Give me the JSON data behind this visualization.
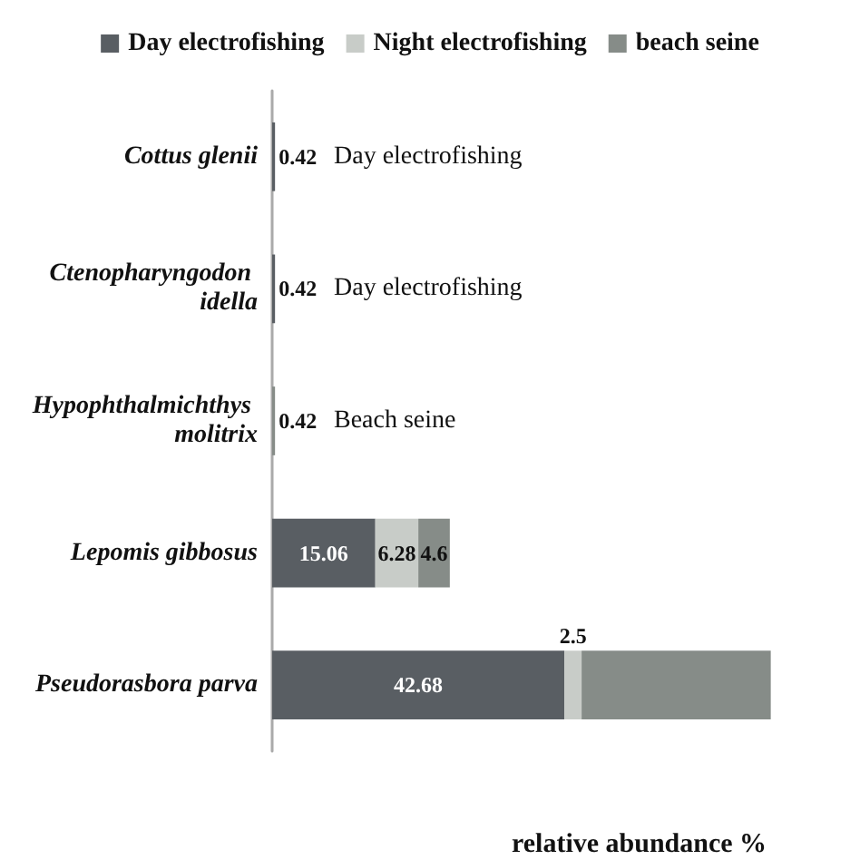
{
  "chart_data": {
    "type": "bar",
    "orientation": "horizontal",
    "stacked": true,
    "xlabel": "relative abundance %",
    "legend": "top",
    "categories": [
      "Cottus glenii",
      "Ctenopharyngodon idella",
      "Hypophthalmichthys molitrix",
      "Lepomis gibbosus",
      "Pseudorasbora parva"
    ],
    "series": [
      {
        "name": "Day electrofishing",
        "color": "#595e63",
        "values": [
          0.42,
          0.42,
          null,
          15.06,
          42.68
        ],
        "value_labels": [
          "0.42",
          "0.42",
          null,
          "15.06",
          "42.68"
        ]
      },
      {
        "name": "Night electrofishing",
        "color": "#c8ccc8",
        "values": [
          null,
          null,
          null,
          6.28,
          2.5
        ],
        "value_labels": [
          null,
          null,
          null,
          "6.28",
          "2.5"
        ]
      },
      {
        "name": "beach seine",
        "color": "#868c88",
        "values": [
          null,
          null,
          0.42,
          4.6,
          27.62
        ],
        "value_labels": [
          null,
          null,
          "0.42",
          "4.6",
          null
        ]
      }
    ],
    "annotations": [
      "Day electrofishing",
      "Day electrofishing",
      "Beach seine"
    ]
  }
}
